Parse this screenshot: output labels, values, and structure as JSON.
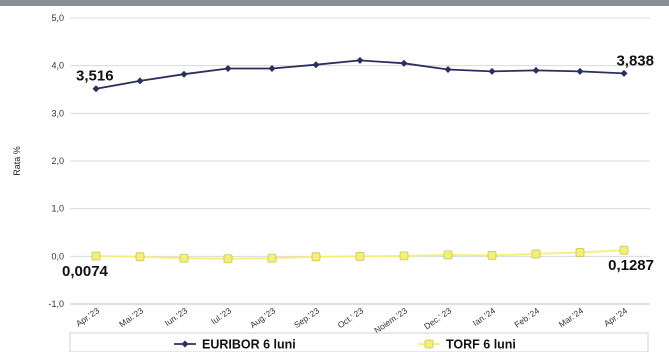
{
  "chart_data": {
    "type": "line",
    "ylabel": "Rata %",
    "ylim": [
      -1.0,
      5.0
    ],
    "yticks": [
      "-1,0",
      "0,0",
      "1,0",
      "2,0",
      "3,0",
      "4,0",
      "5,0"
    ],
    "categories": [
      "Apr.'23",
      "Mai.'23",
      "Iun.'23",
      "Iul.'23",
      "Aug.'23",
      "Sep.'23",
      "Oct.' 23",
      "Noiem.'23",
      "Dec.' 23",
      "Ian.'24",
      "Feb.'24",
      "Mar.'24",
      "Apr.'24"
    ],
    "series": [
      {
        "name": "EURIBOR 6 luni",
        "color": "#2b2f5e",
        "values": [
          3.516,
          3.68,
          3.82,
          3.94,
          3.94,
          4.02,
          4.11,
          4.05,
          3.92,
          3.88,
          3.9,
          3.88,
          3.838
        ]
      },
      {
        "name": "TORF 6 luni",
        "color": "#f2f07a",
        "values": [
          0.0074,
          -0.01,
          -0.04,
          -0.05,
          -0.04,
          -0.01,
          0.0,
          0.01,
          0.03,
          0.02,
          0.05,
          0.08,
          0.1287
        ]
      }
    ],
    "data_labels": [
      {
        "series": 0,
        "index": 0,
        "text": "3,516"
      },
      {
        "series": 0,
        "index": 12,
        "text": "3,838"
      },
      {
        "series": 1,
        "index": 0,
        "text": "0,0074"
      },
      {
        "series": 1,
        "index": 12,
        "text": "0,1287"
      }
    ],
    "grid": true,
    "legend": "bottom"
  }
}
